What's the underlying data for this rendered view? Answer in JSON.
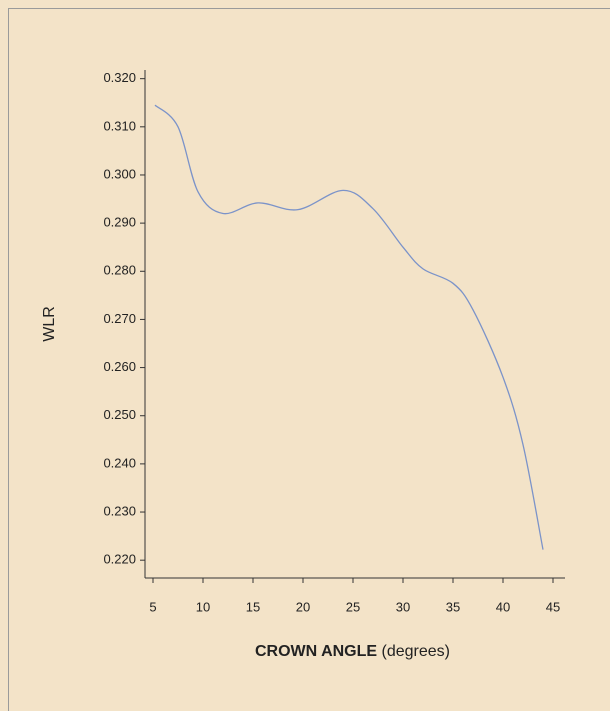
{
  "chart_data": {
    "type": "line",
    "xlabel": "CROWN ANGLE",
    "xlabel_unit": "(degrees)",
    "ylabel": "WLR",
    "x": [
      5.2,
      7.5,
      9.5,
      12,
      15.5,
      19.5,
      24,
      27,
      30,
      32,
      35,
      37,
      40,
      42,
      44
    ],
    "series": [
      {
        "name": "WLR",
        "color": "#7b93c9",
        "values": [
          0.3145,
          0.31,
          0.2965,
          0.292,
          0.2942,
          0.2928,
          0.2968,
          0.293,
          0.285,
          0.2805,
          0.2775,
          0.272,
          0.258,
          0.244,
          0.2222
        ]
      }
    ],
    "xlim": [
      4.2,
      46.2
    ],
    "xticks": [
      5,
      10,
      15,
      20,
      25,
      30,
      35,
      40,
      45
    ],
    "ylim": [
      0.2163,
      0.3218
    ],
    "yticks": [
      {
        "value": 0.22,
        "label": "0.220"
      },
      {
        "value": 0.23,
        "label": "0.230"
      },
      {
        "value": 0.24,
        "label": "0.240"
      },
      {
        "value": 0.25,
        "label": "0.250"
      },
      {
        "value": 0.26,
        "label": "0.260"
      },
      {
        "value": 0.27,
        "label": "0.270"
      },
      {
        "value": 0.28,
        "label": "0.280"
      },
      {
        "value": 0.29,
        "label": "0.290"
      },
      {
        "value": 0.3,
        "label": "0.300"
      },
      {
        "value": 0.31,
        "label": "0.310"
      },
      {
        "value": 0.32,
        "label": "0.320"
      }
    ]
  }
}
